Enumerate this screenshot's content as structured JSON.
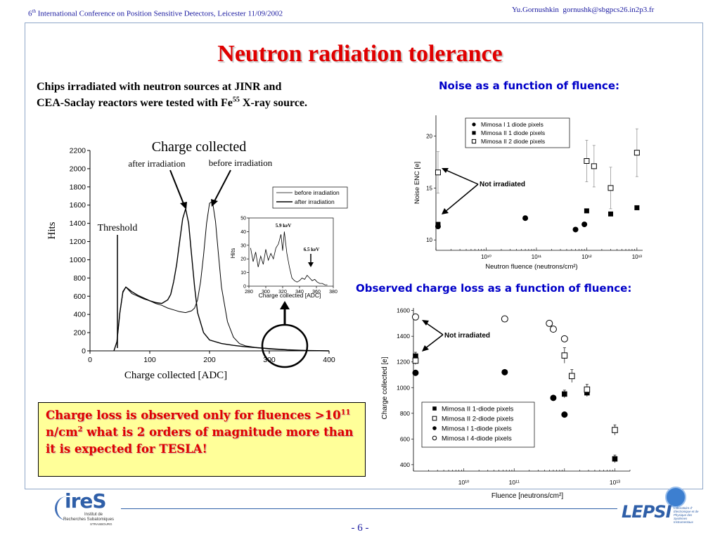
{
  "header": {
    "conf_ordinal": "6",
    "conf_sup": "th",
    "conference": " International Conference on Position Sensitive Detectors, Leicester 11/09/2002",
    "author": "Yu.Gornushkin",
    "email": "gornushk@sbgpcs26.in2p3.fr"
  },
  "title": "Neutron radiation tolerance",
  "intro": {
    "line1": "Chips irradiated with neutron sources  at JINR and",
    "line2_a": "CEA-Saclay reactors were tested with Fe",
    "line2_sup": "55",
    "line2_b": " X-ray source."
  },
  "noise_heading": "Noise as a function of fluence:",
  "loss_heading": "Observed charge loss as a function of fluence:",
  "callout": {
    "a": "Charge loss is observed only for fluences >10",
    "sup1": "11",
    "b": " n/cm",
    "sup2": "2",
    "c": "  what is 2 orders of magnitude more than it is expected for TESLA!"
  },
  "footer": {
    "ires_logo": "ireS",
    "ires_sub1": "Institut de",
    "ires_sub2": "Recherches Subatomiques",
    "ires_sub3": "STRASBOURG",
    "lepsi_logo": "LEPSI",
    "lepsi_sub": [
      "Laboratoire d'",
      "Electronique et de",
      "Physique des",
      "Systèmes",
      "Instrumentaux"
    ],
    "page_number": "- 6 -"
  },
  "chart_data": [
    {
      "type": "line",
      "title": "Charge collected",
      "xlabel": "Charge collected [ADC]",
      "ylabel": "Hits",
      "xlim": [
        0,
        400
      ],
      "ylim": [
        0,
        2200
      ],
      "xticks": [
        0,
        100,
        200,
        300,
        400
      ],
      "yticks": [
        0,
        200,
        400,
        600,
        800,
        1000,
        1200,
        1400,
        1600,
        1800,
        2000,
        2200
      ],
      "legend_position": "top-right",
      "annotations": [
        "after irradiation",
        "before irradiation",
        "Threshold"
      ],
      "series": [
        {
          "name": "before irradiation",
          "x": [
            40,
            45,
            50,
            55,
            60,
            70,
            80,
            90,
            100,
            110,
            120,
            130,
            140,
            150,
            160,
            170,
            175,
            180,
            185,
            190,
            195,
            200,
            205,
            210,
            215,
            220,
            230,
            240,
            250,
            260,
            280,
            300,
            330,
            360,
            400
          ],
          "values": [
            0,
            100,
            420,
            640,
            700,
            630,
            600,
            570,
            550,
            520,
            500,
            470,
            450,
            430,
            420,
            440,
            470,
            560,
            760,
            1050,
            1400,
            1620,
            1640,
            1420,
            1050,
            700,
            320,
            150,
            80,
            55,
            35,
            20,
            10,
            5,
            0
          ]
        },
        {
          "name": "after irradiation",
          "x": [
            40,
            45,
            50,
            55,
            60,
            70,
            80,
            90,
            100,
            110,
            120,
            130,
            135,
            140,
            145,
            150,
            155,
            160,
            165,
            170,
            175,
            180,
            190,
            200,
            220,
            240,
            260,
            280,
            300,
            330,
            360,
            400
          ],
          "values": [
            0,
            100,
            420,
            650,
            700,
            650,
            610,
            580,
            550,
            530,
            520,
            560,
            620,
            760,
            950,
            1200,
            1450,
            1560,
            1400,
            1050,
            700,
            420,
            200,
            120,
            80,
            60,
            45,
            35,
            25,
            12,
            5,
            0
          ]
        }
      ]
    },
    {
      "type": "line",
      "xlabel": "Charge collected [ADC]",
      "ylabel": "Hits",
      "xlim": [
        280,
        380
      ],
      "ylim": [
        0,
        50
      ],
      "xticks": [
        280,
        300,
        320,
        340,
        360,
        380
      ],
      "yticks": [
        0,
        10,
        20,
        30,
        40,
        50
      ],
      "annotations": [
        "5.9 keV",
        "6.5 keV"
      ],
      "series": [
        {
          "x": [
            282,
            285,
            288,
            291,
            294,
            297,
            300,
            303,
            306,
            309,
            312,
            315,
            318,
            320,
            322,
            325,
            328,
            331,
            334,
            337,
            340,
            343,
            346,
            349,
            352,
            355,
            358,
            361,
            364,
            367,
            370,
            373
          ],
          "values": [
            28,
            18,
            25,
            14,
            22,
            16,
            27,
            19,
            24,
            20,
            28,
            31,
            38,
            26,
            40,
            24,
            14,
            6,
            4,
            3,
            4,
            6,
            5,
            8,
            6,
            4,
            5,
            3,
            2,
            2,
            1,
            1
          ]
        }
      ]
    },
    {
      "type": "scatter",
      "xlabel": "Neutron fluence (neutrons/cm²)",
      "ylabel": "Noise ENC [e]",
      "xscale": "log",
      "xlim": [
        1000000000.0,
        13000000000000.0
      ],
      "ylim": [
        9,
        22
      ],
      "xticks": [
        "10¹⁰",
        "10¹¹",
        "10¹²",
        "10¹³"
      ],
      "yticks": [
        10,
        15,
        20
      ],
      "legend_position": "top-left",
      "annotations": [
        "Not irradiated"
      ],
      "series": [
        {
          "name": "Mimosa I  1 diode pixels",
          "marker": "filled-circle",
          "x": [
            1100000000.0,
            60000000000.0,
            600000000000.0,
            900000000000.0
          ],
          "values": [
            11.3,
            12.1,
            11.0,
            11.5
          ]
        },
        {
          "name": "Mimosa II 1 diode pixels",
          "marker": "filled-square",
          "x": [
            1100000000.0,
            1000000000000.0,
            3000000000000.0,
            10000000000000.0
          ],
          "values": [
            11.5,
            12.8,
            12.5,
            13.1
          ]
        },
        {
          "name": "Mimosa II 2 diode pixels",
          "marker": "open-square",
          "x": [
            1100000000.0,
            1000000000000.0,
            1400000000000.0,
            3000000000000.0,
            10000000000000.0
          ],
          "values": [
            16.5,
            17.6,
            17.1,
            15.0,
            18.4
          ],
          "err": [
            2.0,
            2.0,
            2.0,
            2.0,
            2.3
          ]
        }
      ]
    },
    {
      "type": "scatter",
      "xlabel": "Fluence [neutrons/cm²]",
      "ylabel": "Charge collected [e]",
      "xscale": "log",
      "xlim": [
        1000000000.0,
        20000000000000.0
      ],
      "ylim": [
        350,
        1620
      ],
      "xticks": [
        "10¹⁰",
        "10¹¹",
        "10¹³"
      ],
      "yticks": [
        400,
        600,
        800,
        1000,
        1200,
        1400,
        1600
      ],
      "legend_position": "bottom-left",
      "annotations": [
        "Not irradiated"
      ],
      "series": [
        {
          "name": "Mimosa II 1-diode pixels",
          "marker": "filled-square",
          "x": [
            1100000000.0,
            1000000000000.0,
            2800000000000.0,
            10000000000000.0
          ],
          "values": [
            1245,
            950,
            960,
            445
          ],
          "err": [
            30,
            30,
            30,
            30
          ]
        },
        {
          "name": "Mimosa II 2-diode pixels",
          "marker": "open-square",
          "x": [
            1100000000.0,
            1000000000000.0,
            1400000000000.0,
            2800000000000.0,
            10000000000000.0
          ],
          "values": [
            1210,
            1250,
            1090,
            985,
            670
          ],
          "err": [
            30,
            60,
            50,
            40,
            40
          ]
        },
        {
          "name": "Mimosa I  1-diode pixels",
          "marker": "filled-circle",
          "x": [
            1100000000.0,
            65000000000.0,
            600000000000.0,
            1000000000000.0
          ],
          "values": [
            1115,
            1120,
            920,
            790
          ]
        },
        {
          "name": "Mimosa I  4-diode pixels",
          "marker": "open-circle",
          "x": [
            1100000000.0,
            65000000000.0,
            500000000000.0,
            600000000000.0,
            1000000000000.0
          ],
          "values": [
            1550,
            1535,
            1500,
            1455,
            1380
          ]
        }
      ]
    }
  ]
}
